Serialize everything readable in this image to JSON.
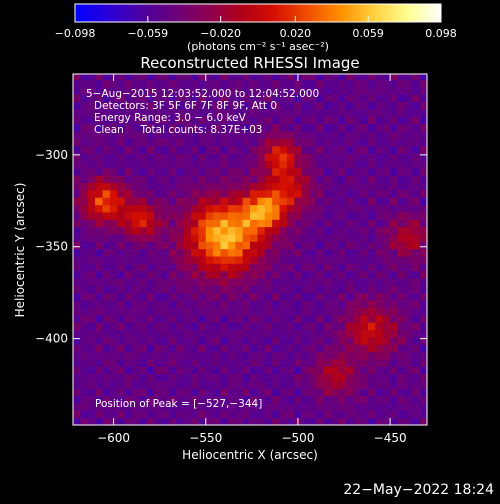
{
  "colorbar": {
    "ticks": [
      {
        "value": -0.098,
        "label": "−0.098"
      },
      {
        "value": -0.059,
        "label": "−0.059"
      },
      {
        "value": -0.02,
        "label": "−0.020"
      },
      {
        "value": 0.02,
        "label": "0.020"
      },
      {
        "value": 0.059,
        "label": "0.059"
      },
      {
        "value": 0.098,
        "label": "0.098"
      }
    ],
    "range": [
      -0.098,
      0.098
    ],
    "units": "(photons cm⁻² s⁻¹ asec⁻²)",
    "colors": [
      "#0000ff",
      "#2a00d8",
      "#4b00a0",
      "#6a007a",
      "#8c0050",
      "#b00018",
      "#d41000",
      "#f05000",
      "#ff9000",
      "#ffd040",
      "#ffff90",
      "#ffffff"
    ]
  },
  "chart_data": {
    "type": "heatmap",
    "title": "Reconstructed RHESSI Image",
    "xlabel": "Heliocentric X (arcsec)",
    "ylabel": "Heliocentric Y (arcsec)",
    "xlim": [
      -622,
      -430
    ],
    "ylim": [
      -447,
      -256
    ],
    "xticks": [
      {
        "value": -600,
        "label": "−600"
      },
      {
        "value": -550,
        "label": "−550"
      },
      {
        "value": -500,
        "label": "−500"
      },
      {
        "value": -450,
        "label": "−450"
      }
    ],
    "yticks": [
      {
        "value": -300,
        "label": "−300"
      },
      {
        "value": -350,
        "label": "−350"
      },
      {
        "value": -400,
        "label": "−400"
      }
    ],
    "info_lines": [
      "5−Aug−2015 12:03:52.000 to 12:04:52.000",
      "Detectors: 3F 5F 6F 7F 8F 9F, Att 0",
      "Energy Range: 3.0 − 6.0 keV",
      "Clean     Total counts: 8.37E+03"
    ],
    "peak_annotation": "Position of Peak = [−527,−344]",
    "peak_position": [
      -527,
      -344
    ],
    "sources": [
      {
        "x": -540,
        "y": -344,
        "peak": 0.098,
        "sigma": 14
      },
      {
        "x": -518,
        "y": -330,
        "peak": 0.07,
        "sigma": 8
      },
      {
        "x": -510,
        "y": -300,
        "peak": 0.05,
        "sigma": 7
      },
      {
        "x": -605,
        "y": -325,
        "peak": 0.065,
        "sigma": 8
      },
      {
        "x": -585,
        "y": -335,
        "peak": 0.05,
        "sigma": 7
      },
      {
        "x": -505,
        "y": -318,
        "peak": 0.04,
        "sigma": 9
      },
      {
        "x": -460,
        "y": -395,
        "peak": 0.04,
        "sigma": 10
      },
      {
        "x": -440,
        "y": -345,
        "peak": 0.03,
        "sigma": 8
      },
      {
        "x": -480,
        "y": -420,
        "peak": 0.03,
        "sigma": 8
      }
    ],
    "background_level": -0.05,
    "grid": false
  },
  "footer": {
    "timestamp": "22−May−2022 18:24"
  }
}
